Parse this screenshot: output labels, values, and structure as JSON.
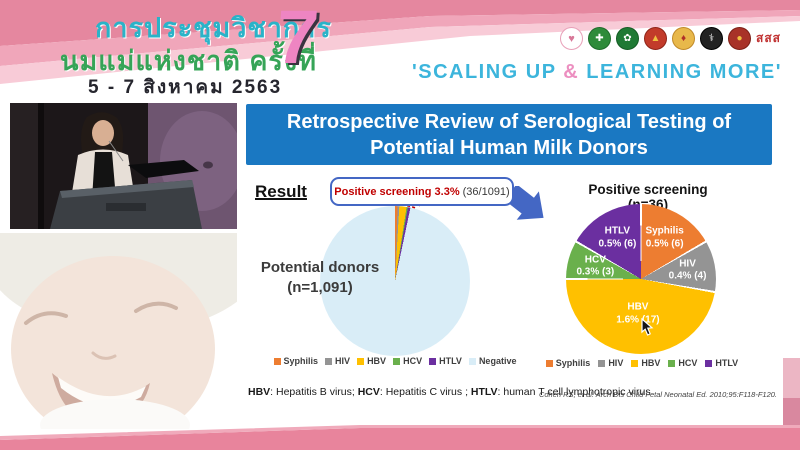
{
  "header": {
    "thai_title_line1": "การประชุมวิชาการ",
    "thai_title_line2": "นมแม่แห่งชาติ ครั้งที่",
    "edition_number": "7",
    "thai_date": "5 - 7 สิงหาคม 2563",
    "slogan_part1": "'SCALING UP ",
    "slogan_amp": "&",
    "slogan_part2": " LEARNING MORE'",
    "sss_logo_text": "สสส",
    "colors": {
      "banner_pink": "#e5879f",
      "slogan_blue": "#3cb5dc",
      "slogan_pink": "#ec8fc0"
    }
  },
  "slide": {
    "title_line1": "Retrospective Review of Serological Testing of",
    "title_line2": "Potential Human Milk Donors",
    "result_label": "Result",
    "callout_highlight": "Positive screening 3.3%",
    "callout_detail": "(36/1091)",
    "footnote": [
      {
        "abbr": "HBV",
        "def": ": Hepatitis B virus; "
      },
      {
        "abbr": "HCV",
        "def": ": Hepatitis C virus ; "
      },
      {
        "abbr": "HTLV",
        "def": ": human T cell lymphotropic virus"
      }
    ],
    "citation": "Cohen RS, et al. Arch Dis Child Fetal Neonatal Ed. 2010;95:F118-F120.",
    "colors": {
      "title_bg": "#1a78c2",
      "accent_blue": "#4467c4",
      "highlight_red": "#c00000"
    }
  },
  "chart_data": [
    {
      "type": "pie",
      "name": "potential-donors-pie",
      "center_label_line1": "Potential donors",
      "center_label_line2": "(n=1,091)",
      "total": 1091,
      "annotation": "Positive screening 3.3% (36/1091)",
      "legend_position": "bottom",
      "slices": [
        {
          "label": "Syphilis",
          "value": 6,
          "color": "#ed7d31"
        },
        {
          "label": "HIV",
          "value": 4,
          "color": "#949494"
        },
        {
          "label": "HBV",
          "value": 17,
          "color": "#ffc000"
        },
        {
          "label": "HCV",
          "value": 3,
          "color": "#6ab04c"
        },
        {
          "label": "HTLV",
          "value": 6,
          "color": "#6b2fa0"
        },
        {
          "label": "Negative",
          "value": 1055,
          "color": "#d9edf7"
        }
      ]
    },
    {
      "type": "pie",
      "name": "positive-screening-pie",
      "title": "Positive screening (n=36)",
      "total": 36,
      "legend_position": "bottom",
      "slices": [
        {
          "label": "Syphilis",
          "value": 6,
          "pct_label": "0.5% (6)",
          "color": "#ed7d31"
        },
        {
          "label": "HIV",
          "value": 4,
          "pct_label": "0.4% (4)",
          "color": "#949494"
        },
        {
          "label": "HBV",
          "value": 17,
          "pct_label": "1.6% (17)",
          "color": "#ffc000"
        },
        {
          "label": "HCV",
          "value": 3,
          "pct_label": "0.3% (3)",
          "color": "#6ab04c"
        },
        {
          "label": "HTLV",
          "value": 6,
          "pct_label": "0.5% (6)",
          "color": "#6b2fa0"
        }
      ]
    }
  ]
}
